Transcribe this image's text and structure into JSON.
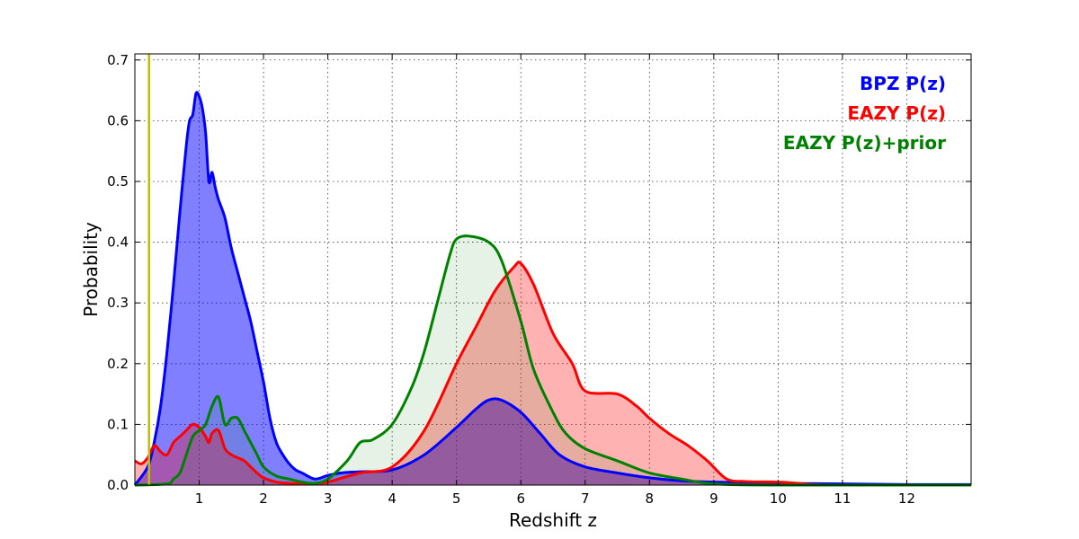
{
  "chart_data": {
    "type": "area",
    "title": "",
    "xlabel": "Redshift z",
    "ylabel": "Probability",
    "xlim": [
      0,
      13
    ],
    "ylim": [
      0,
      0.71
    ],
    "x_ticks": [
      1,
      2,
      3,
      4,
      5,
      6,
      7,
      8,
      9,
      10,
      11,
      12
    ],
    "x_tick_labels": [
      "1",
      "2",
      "3",
      "4",
      "5",
      "6",
      "7",
      "8",
      "9",
      "10",
      "11",
      "12"
    ],
    "y_ticks": [
      0.0,
      0.1,
      0.2,
      0.3,
      0.4,
      0.5,
      0.6,
      0.7
    ],
    "y_tick_labels": [
      "0.0",
      "0.1",
      "0.2",
      "0.3",
      "0.4",
      "0.5",
      "0.6",
      "0.7"
    ],
    "grid": true,
    "legend_position": "top-right",
    "vline": {
      "x": 0.22,
      "color": "#bfbf00"
    },
    "series": [
      {
        "name": "BPZ P(z)",
        "color": "#0000ff",
        "fill": "#0000ff",
        "fill_opacity": 0.5,
        "x": [
          0,
          0.2,
          0.3,
          0.4,
          0.5,
          0.6,
          0.7,
          0.8,
          0.85,
          0.9,
          0.95,
          1.0,
          1.05,
          1.1,
          1.15,
          1.2,
          1.25,
          1.3,
          1.4,
          1.5,
          1.6,
          1.7,
          1.8,
          1.9,
          2.0,
          2.1,
          2.2,
          2.3,
          2.4,
          2.5,
          2.6,
          2.8,
          3.0,
          3.2,
          3.5,
          4.0,
          4.5,
          5.0,
          5.3,
          5.5,
          5.7,
          6.0,
          6.3,
          6.6,
          7.0,
          7.5,
          8.0,
          8.5,
          9.0,
          9.5,
          10.0,
          11.0,
          12.0,
          13.0
        ],
        "y": [
          0.0,
          0.03,
          0.07,
          0.13,
          0.22,
          0.33,
          0.45,
          0.56,
          0.6,
          0.61,
          0.645,
          0.64,
          0.62,
          0.58,
          0.5,
          0.515,
          0.49,
          0.47,
          0.44,
          0.39,
          0.35,
          0.31,
          0.27,
          0.22,
          0.17,
          0.11,
          0.07,
          0.05,
          0.035,
          0.025,
          0.02,
          0.01,
          0.016,
          0.02,
          0.022,
          0.025,
          0.05,
          0.095,
          0.125,
          0.14,
          0.14,
          0.12,
          0.085,
          0.05,
          0.03,
          0.02,
          0.012,
          0.007,
          0.005,
          0.004,
          0.003,
          0.002,
          0.001,
          0.001
        ]
      },
      {
        "name": "EAZY P(z)",
        "color": "#ff0000",
        "fill": "#ff0000",
        "fill_opacity": 0.3,
        "x": [
          0,
          0.1,
          0.2,
          0.3,
          0.4,
          0.5,
          0.6,
          0.7,
          0.8,
          0.9,
          1.0,
          1.1,
          1.15,
          1.2,
          1.3,
          1.4,
          1.5,
          1.6,
          1.7,
          1.8,
          1.9,
          2.0,
          2.2,
          2.4,
          2.6,
          2.8,
          3.0,
          3.5,
          4.0,
          4.5,
          5.0,
          5.3,
          5.6,
          5.9,
          6.0,
          6.2,
          6.5,
          6.8,
          7.0,
          7.5,
          7.8,
          8.0,
          8.3,
          8.6,
          8.9,
          9.2,
          9.5,
          10.0,
          10.3,
          10.5,
          11.0,
          13.0
        ],
        "y": [
          0.04,
          0.035,
          0.045,
          0.065,
          0.055,
          0.05,
          0.07,
          0.08,
          0.09,
          0.1,
          0.095,
          0.08,
          0.07,
          0.085,
          0.09,
          0.06,
          0.05,
          0.045,
          0.04,
          0.03,
          0.02,
          0.012,
          0.005,
          0.003,
          0.002,
          0.002,
          0.005,
          0.02,
          0.03,
          0.09,
          0.2,
          0.26,
          0.32,
          0.36,
          0.365,
          0.33,
          0.25,
          0.2,
          0.155,
          0.15,
          0.13,
          0.11,
          0.085,
          0.065,
          0.04,
          0.01,
          0.006,
          0.005,
          0.003,
          0.001,
          0.0,
          0.0
        ]
      },
      {
        "name": "EAZY P(z)+prior",
        "color": "#008000",
        "fill": "#008000",
        "fill_opacity": 0.1,
        "x": [
          0,
          0.5,
          0.6,
          0.7,
          0.8,
          0.9,
          1.0,
          1.1,
          1.2,
          1.3,
          1.4,
          1.5,
          1.6,
          1.7,
          1.8,
          1.9,
          2.0,
          2.2,
          2.4,
          2.6,
          2.8,
          3.0,
          3.3,
          3.5,
          3.7,
          4.0,
          4.3,
          4.5,
          4.7,
          4.9,
          5.0,
          5.2,
          5.5,
          5.7,
          6.0,
          6.2,
          6.5,
          6.7,
          7.0,
          7.5,
          8.0,
          8.5,
          9.0,
          10.0,
          13.0
        ],
        "y": [
          0.0,
          0.002,
          0.01,
          0.02,
          0.05,
          0.08,
          0.09,
          0.1,
          0.13,
          0.145,
          0.1,
          0.11,
          0.11,
          0.09,
          0.07,
          0.05,
          0.03,
          0.015,
          0.01,
          0.005,
          0.003,
          0.01,
          0.04,
          0.07,
          0.075,
          0.1,
          0.16,
          0.22,
          0.3,
          0.38,
          0.405,
          0.41,
          0.4,
          0.37,
          0.27,
          0.19,
          0.12,
          0.085,
          0.06,
          0.04,
          0.02,
          0.01,
          0.002,
          0.0,
          0.0
        ]
      }
    ]
  },
  "colors": {
    "axis": "#000000",
    "grid": "#000000",
    "background": "#ffffff"
  }
}
